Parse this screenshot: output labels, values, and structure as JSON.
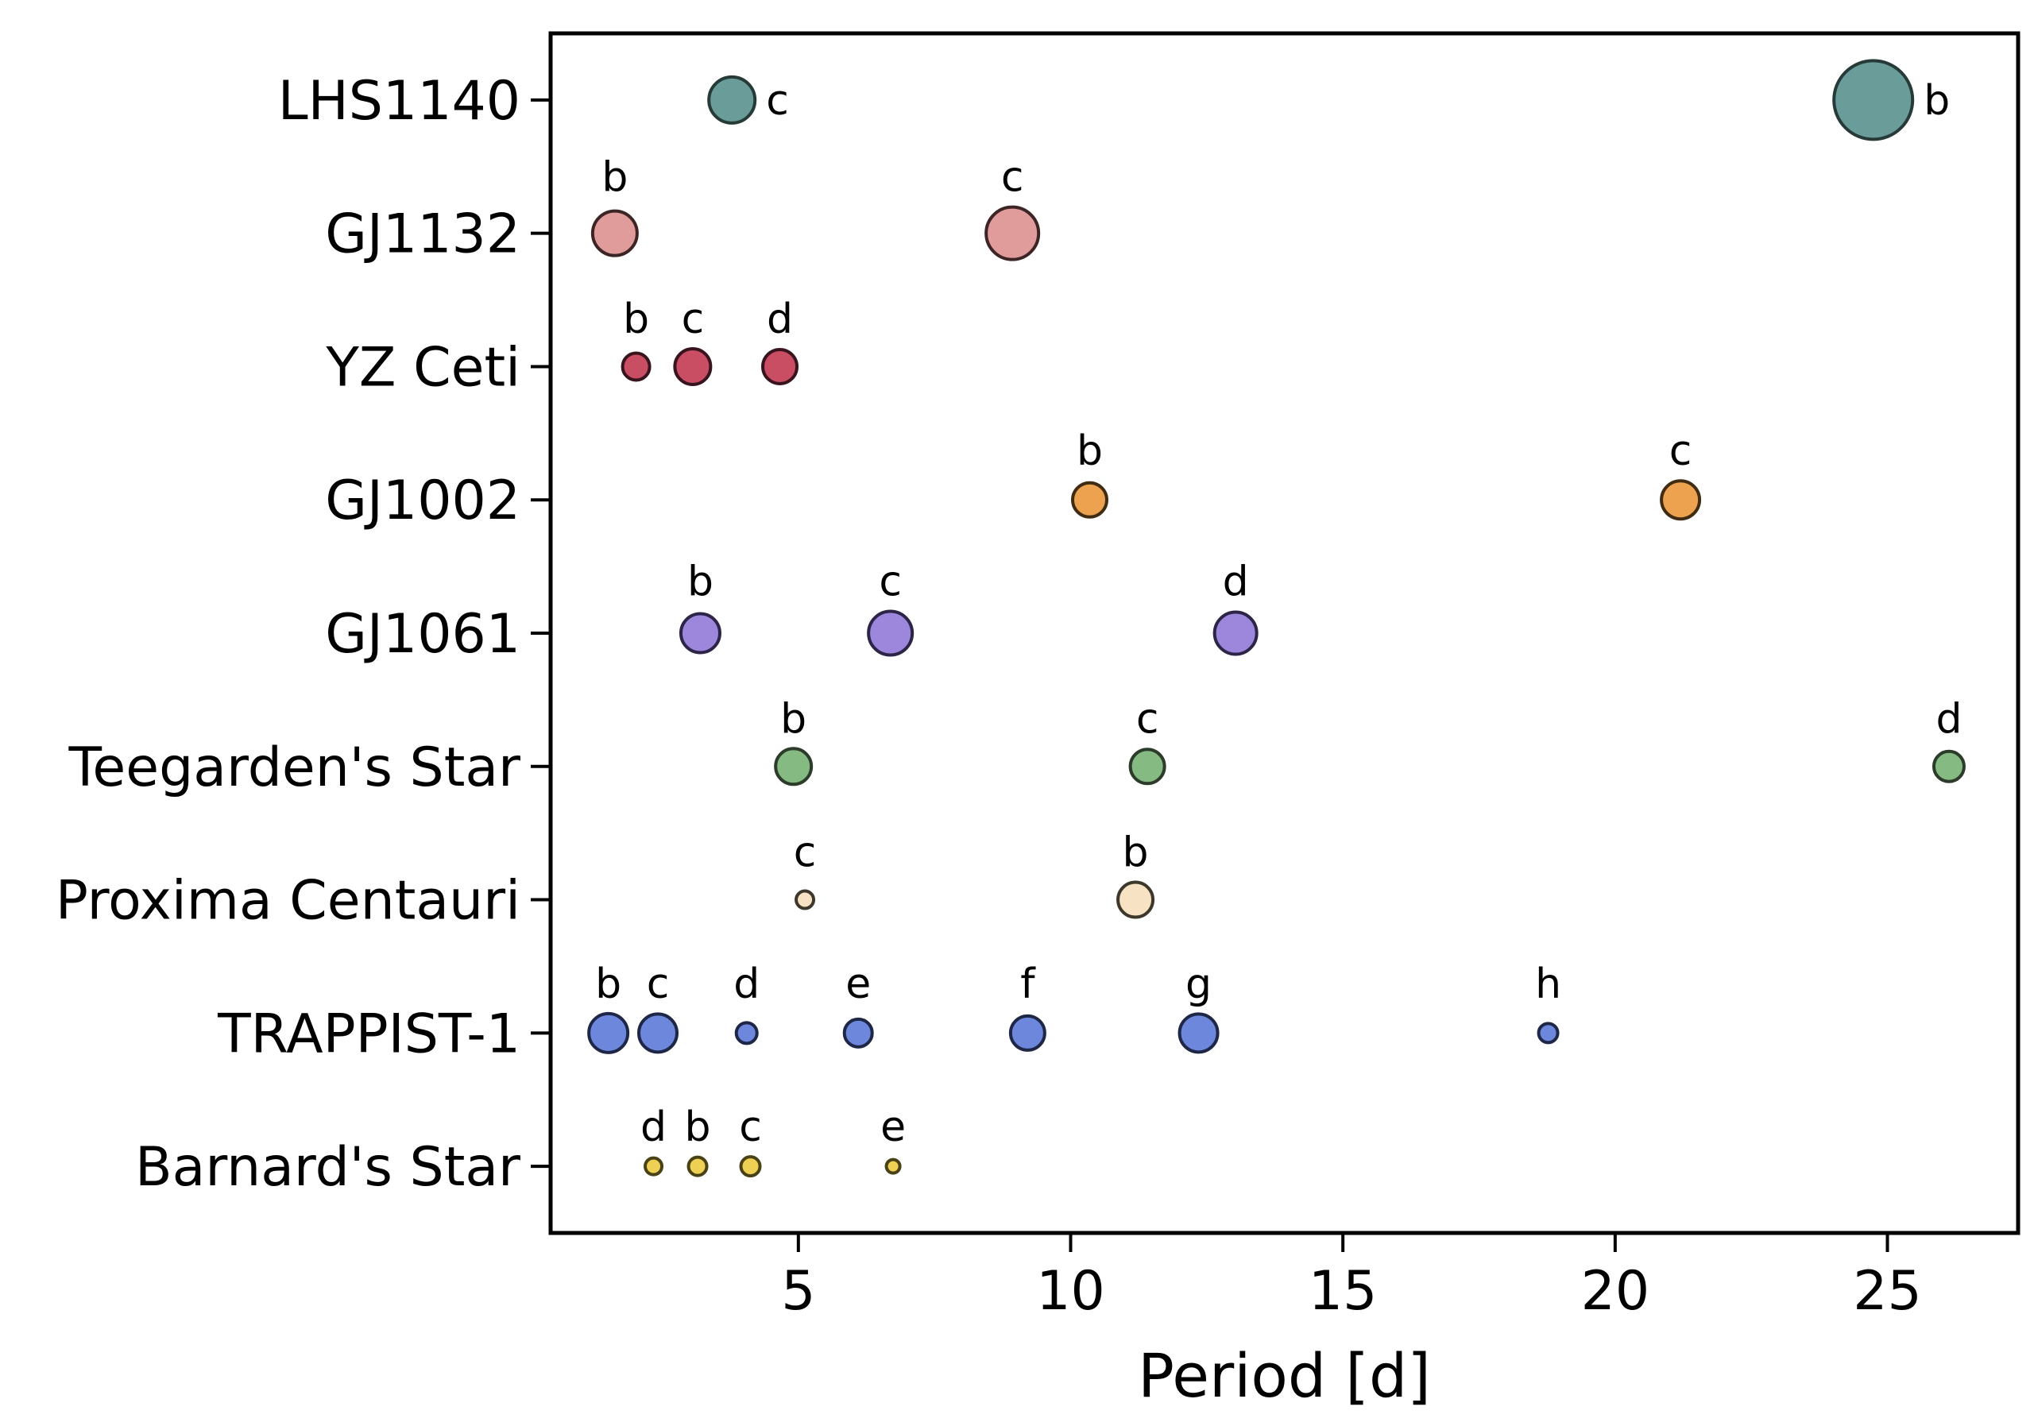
{
  "chart_data": {
    "type": "scatter",
    "title": "",
    "xlabel": "Period [d]",
    "x_ticks": [
      5,
      10,
      15,
      20,
      25
    ],
    "x_range": [
      0.45,
      27.4
    ],
    "grid": false,
    "legend": "none",
    "background": "#ffffff",
    "y_categories": [
      "LHS1140",
      "GJ1132",
      "YZ Ceti",
      "GJ1002",
      "GJ1061",
      "Teegarden's Star",
      "Proxima Centauri",
      "TRAPPIST-1",
      "Barnard's Star"
    ],
    "size_encoding": "bubble diameter scales with planet mass",
    "systems": [
      {
        "star": "LHS1140",
        "fill": "#6a9c99",
        "edge": "#263a38",
        "label_side": "right",
        "planets": [
          {
            "letter": "c",
            "period_d": 3.78,
            "marker_diameter": 58
          },
          {
            "letter": "b",
            "period_d": 24.74,
            "marker_diameter": 99
          }
        ]
      },
      {
        "star": "GJ1132",
        "fill": "#df9c9b",
        "edge": "#3d2425",
        "label_side": "above",
        "planets": [
          {
            "letter": "b",
            "period_d": 1.63,
            "marker_diameter": 56
          },
          {
            "letter": "c",
            "period_d": 8.93,
            "marker_diameter": 66
          }
        ]
      },
      {
        "star": "YZ Ceti",
        "fill": "#c94e63",
        "edge": "#38141f",
        "label_side": "above",
        "planets": [
          {
            "letter": "b",
            "period_d": 2.02,
            "marker_diameter": 34
          },
          {
            "letter": "c",
            "period_d": 3.06,
            "marker_diameter": 45
          },
          {
            "letter": "d",
            "period_d": 4.66,
            "marker_diameter": 43
          }
        ]
      },
      {
        "star": "GJ1002",
        "fill": "#eca24f",
        "edge": "#3f2c12",
        "label_side": "above",
        "planets": [
          {
            "letter": "b",
            "period_d": 10.35,
            "marker_diameter": 43
          },
          {
            "letter": "c",
            "period_d": 21.2,
            "marker_diameter": 48
          }
        ]
      },
      {
        "star": "GJ1061",
        "fill": "#9c87dc",
        "edge": "#2c2547",
        "label_side": "above",
        "planets": [
          {
            "letter": "b",
            "period_d": 3.2,
            "marker_diameter": 49
          },
          {
            "letter": "c",
            "period_d": 6.69,
            "marker_diameter": 55
          },
          {
            "letter": "d",
            "period_d": 13.03,
            "marker_diameter": 53
          }
        ]
      },
      {
        "star": "Teegarden's Star",
        "fill": "#85bb83",
        "edge": "#2c3b2a",
        "label_side": "above",
        "planets": [
          {
            "letter": "b",
            "period_d": 4.91,
            "marker_diameter": 45
          },
          {
            "letter": "c",
            "period_d": 11.41,
            "marker_diameter": 43
          },
          {
            "letter": "d",
            "period_d": 26.13,
            "marker_diameter": 38
          }
        ]
      },
      {
        "star": "Proxima Centauri",
        "fill": "#f7e3c4",
        "edge": "#3e372b",
        "label_side": "above",
        "planets": [
          {
            "letter": "c",
            "period_d": 5.12,
            "marker_diameter": 22
          },
          {
            "letter": "b",
            "period_d": 11.19,
            "marker_diameter": 44
          }
        ]
      },
      {
        "star": "TRAPPIST-1",
        "fill": "#6d87dc",
        "edge": "#1f2747",
        "label_side": "above",
        "planets": [
          {
            "letter": "b",
            "period_d": 1.51,
            "marker_diameter": 49
          },
          {
            "letter": "c",
            "period_d": 2.42,
            "marker_diameter": 48
          },
          {
            "letter": "d",
            "period_d": 4.05,
            "marker_diameter": 26
          },
          {
            "letter": "e",
            "period_d": 6.1,
            "marker_diameter": 35
          },
          {
            "letter": "f",
            "period_d": 9.21,
            "marker_diameter": 43
          },
          {
            "letter": "g",
            "period_d": 12.35,
            "marker_diameter": 48
          },
          {
            "letter": "h",
            "period_d": 18.77,
            "marker_diameter": 24
          }
        ]
      },
      {
        "star": "Barnard's Star",
        "fill": "#eed054",
        "edge": "#4a4217",
        "label_side": "above",
        "planets": [
          {
            "letter": "d",
            "period_d": 2.34,
            "marker_diameter": 21
          },
          {
            "letter": "b",
            "period_d": 3.15,
            "marker_diameter": 23
          },
          {
            "letter": "c",
            "period_d": 4.12,
            "marker_diameter": 24
          },
          {
            "letter": "e",
            "period_d": 6.74,
            "marker_diameter": 17
          }
        ]
      }
    ]
  }
}
